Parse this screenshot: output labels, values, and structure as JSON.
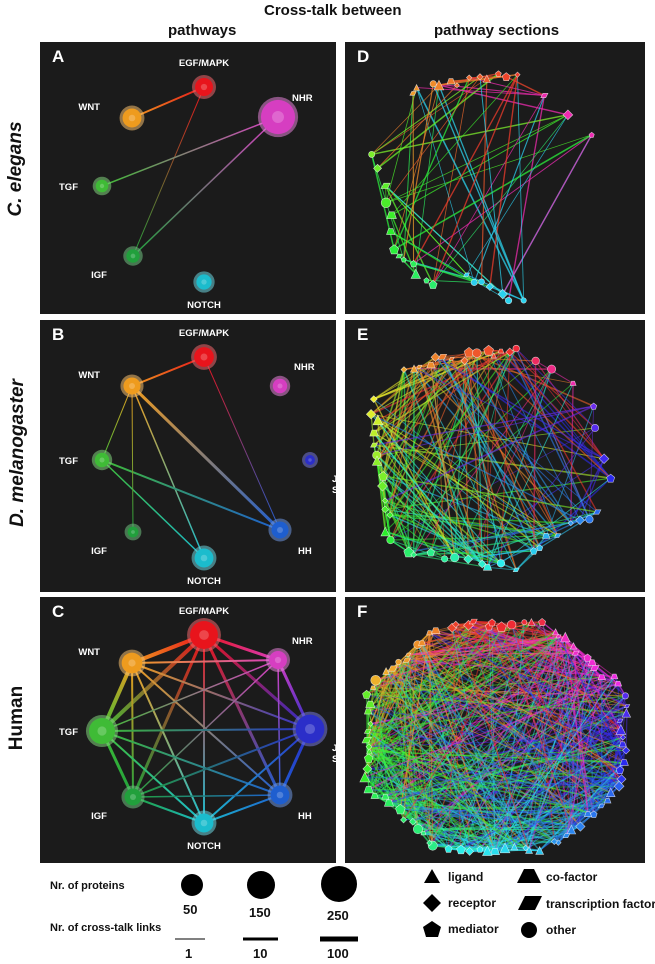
{
  "headers": {
    "top": "Cross-talk between",
    "left": "pathways",
    "right": "pathway sections"
  },
  "species": [
    "C. elegans",
    "D. melanogaster",
    "Human"
  ],
  "colors": {
    "EGF/MAPK": "#e8141c",
    "NHR": "#d63ec1",
    "JAK/STAT": "#2b2ec9",
    "HH": "#1e5ecf",
    "NOTCH": "#1bbccd",
    "IGF": "#21a03c",
    "TGF": "#3fbb36",
    "WNT": "#ee9b1e"
  },
  "panels": [
    {
      "letter": "A",
      "nodes": [
        {
          "id": "EGF/MAPK",
          "label": "EGF/MAPK",
          "size": 1.0
        },
        {
          "id": "WNT",
          "label": "WNT",
          "size": 1.05
        },
        {
          "id": "NHR",
          "label": "NHR",
          "size": 1.9
        },
        {
          "id": "TGF",
          "label": "TGF",
          "size": 0.7
        },
        {
          "id": "IGF",
          "label": "IGF",
          "size": 0.75
        },
        {
          "id": "NOTCH",
          "label": "NOTCH",
          "size": 0.85
        }
      ],
      "edges": [
        [
          "WNT",
          "EGF/MAPK",
          2
        ],
        [
          "EGF/MAPK",
          "IGF",
          1
        ],
        [
          "TGF",
          "NHR",
          1.5
        ],
        [
          "NHR",
          "IGF",
          1.5
        ]
      ]
    },
    {
      "letter": "B",
      "nodes": [
        {
          "id": "EGF/MAPK",
          "label": "EGF/MAPK",
          "size": 1.1
        },
        {
          "id": "WNT",
          "label": "WNT",
          "size": 0.95
        },
        {
          "id": "NHR",
          "label": "NHR",
          "size": 0.8
        },
        {
          "id": "TGF",
          "label": "TGF",
          "size": 0.8
        },
        {
          "id": "JAK/STAT",
          "label": "JAK/ STAT",
          "size": 0.55
        },
        {
          "id": "IGF",
          "label": "IGF",
          "size": 0.6
        },
        {
          "id": "HH",
          "label": "HH",
          "size": 0.95
        },
        {
          "id": "NOTCH",
          "label": "NOTCH",
          "size": 1.05
        }
      ],
      "edges": [
        [
          "WNT",
          "EGF/MAPK",
          2
        ],
        [
          "TGF",
          "WNT",
          1
        ],
        [
          "WNT",
          "HH",
          3
        ],
        [
          "WNT",
          "NOTCH",
          1.5
        ],
        [
          "TGF",
          "HH",
          2
        ],
        [
          "TGF",
          "NOTCH",
          1.5
        ],
        [
          "EGF/MAPK",
          "HH",
          1
        ],
        [
          "IGF",
          "WNT",
          1
        ]
      ]
    },
    {
      "letter": "C",
      "nodes": [
        {
          "id": "EGF/MAPK",
          "label": "EGF/MAPK",
          "size": 1.55
        },
        {
          "id": "WNT",
          "label": "WNT",
          "size": 1.15
        },
        {
          "id": "NHR",
          "label": "NHR",
          "size": 1.0
        },
        {
          "id": "TGF",
          "label": "TGF",
          "size": 1.45
        },
        {
          "id": "JAK/STAT",
          "label": "JAK/ STAT",
          "size": 1.6
        },
        {
          "id": "IGF",
          "label": "IGF",
          "size": 0.95
        },
        {
          "id": "HH",
          "label": "HH",
          "size": 1.05
        },
        {
          "id": "NOTCH",
          "label": "NOTCH",
          "size": 1.05
        }
      ],
      "edges": [
        [
          "WNT",
          "EGF/MAPK",
          4
        ],
        [
          "EGF/MAPK",
          "NHR",
          3
        ],
        [
          "EGF/MAPK",
          "JAK/STAT",
          3
        ],
        [
          "EGF/MAPK",
          "TGF",
          4
        ],
        [
          "EGF/MAPK",
          "IGF",
          3
        ],
        [
          "EGF/MAPK",
          "HH",
          3
        ],
        [
          "EGF/MAPK",
          "NOTCH",
          2
        ],
        [
          "WNT",
          "TGF",
          4
        ],
        [
          "WNT",
          "NHR",
          2
        ],
        [
          "WNT",
          "JAK/STAT",
          2
        ],
        [
          "WNT",
          "IGF",
          2
        ],
        [
          "WNT",
          "HH",
          2
        ],
        [
          "WNT",
          "NOTCH",
          2
        ],
        [
          "NHR",
          "TGF",
          1.5
        ],
        [
          "NHR",
          "JAK/STAT",
          3
        ],
        [
          "NHR",
          "IGF",
          1.5
        ],
        [
          "NHR",
          "HH",
          1.5
        ],
        [
          "TGF",
          "JAK/STAT",
          2
        ],
        [
          "TGF",
          "IGF",
          3
        ],
        [
          "TGF",
          "HH",
          2
        ],
        [
          "TGF",
          "NOTCH",
          2
        ],
        [
          "JAK/STAT",
          "IGF",
          2
        ],
        [
          "JAK/STAT",
          "HH",
          3
        ],
        [
          "JAK/STAT",
          "NOTCH",
          2
        ],
        [
          "IGF",
          "NOTCH",
          2
        ],
        [
          "IGF",
          "HH",
          1.5
        ],
        [
          "HH",
          "NOTCH",
          2
        ]
      ]
    }
  ],
  "legend": {
    "proteins_label": "Nr. of proteins",
    "protein_sizes": [
      "50",
      "150",
      "250"
    ],
    "links_label": "Nr. of cross-talk links",
    "link_counts": [
      "1",
      "10",
      "100"
    ],
    "shapes": [
      {
        "label": "ligand",
        "shape": "triangle"
      },
      {
        "label": "receptor",
        "shape": "diamond"
      },
      {
        "label": "mediator",
        "shape": "pentagon"
      },
      {
        "label": "co-factor",
        "shape": "trapezoid"
      },
      {
        "label": "transcription factor",
        "shape": "parallelogram"
      },
      {
        "label": "other",
        "shape": "circle"
      }
    ]
  }
}
